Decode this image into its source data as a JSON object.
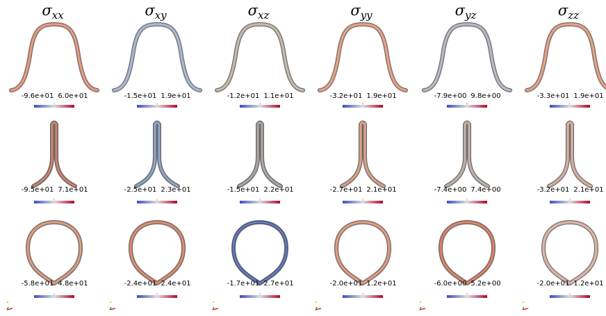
{
  "columns": [
    {
      "symbol": "σ",
      "subscript": "xx"
    },
    {
      "symbol": "σ",
      "subscript": "xy"
    },
    {
      "symbol": "σ",
      "subscript": "xz"
    },
    {
      "symbol": "σ",
      "subscript": "yy"
    },
    {
      "symbol": "σ",
      "subscript": "yz"
    },
    {
      "symbol": "σ",
      "subscript": "zz"
    }
  ],
  "rows": [
    [
      {
        "min": "-9.6e+01",
        "max": "6.0e+01"
      },
      {
        "min": "-1.5e+01",
        "max": "1.9e+01"
      },
      {
        "min": "-1.2e+01",
        "max": "1.1e+01"
      },
      {
        "min": "-3.2e+01",
        "max": "1.9e+01"
      },
      {
        "min": "-7.9e+00",
        "max": "9.8e+00"
      },
      {
        "min": "-3.3e+01",
        "max": "1.9e+01"
      }
    ],
    [
      {
        "min": "-9.5e+01",
        "max": "7.1e+01"
      },
      {
        "min": "-2.5e+01",
        "max": "2.3e+01"
      },
      {
        "min": "-1.5e+01",
        "max": "2.2e+01"
      },
      {
        "min": "-2.7e+01",
        "max": "2.1e+01"
      },
      {
        "min": "-7.4e+00",
        "max": "7.4e+00"
      },
      {
        "min": "-3.2e+01",
        "max": "2.1e+01"
      }
    ],
    [
      {
        "min": "-5.8e+01",
        "max": "4.8e+01"
      },
      {
        "min": "-2.4e+01",
        "max": "2.4e+01"
      },
      {
        "min": "-1.7e+01",
        "max": "2.7e+01"
      },
      {
        "min": "-2.0e+01",
        "max": "1.2e+01"
      },
      {
        "min": "-6.0e+00",
        "max": "5.2e+00"
      },
      {
        "min": "-2.0e+01",
        "max": "1.2e+01"
      }
    ]
  ]
}
